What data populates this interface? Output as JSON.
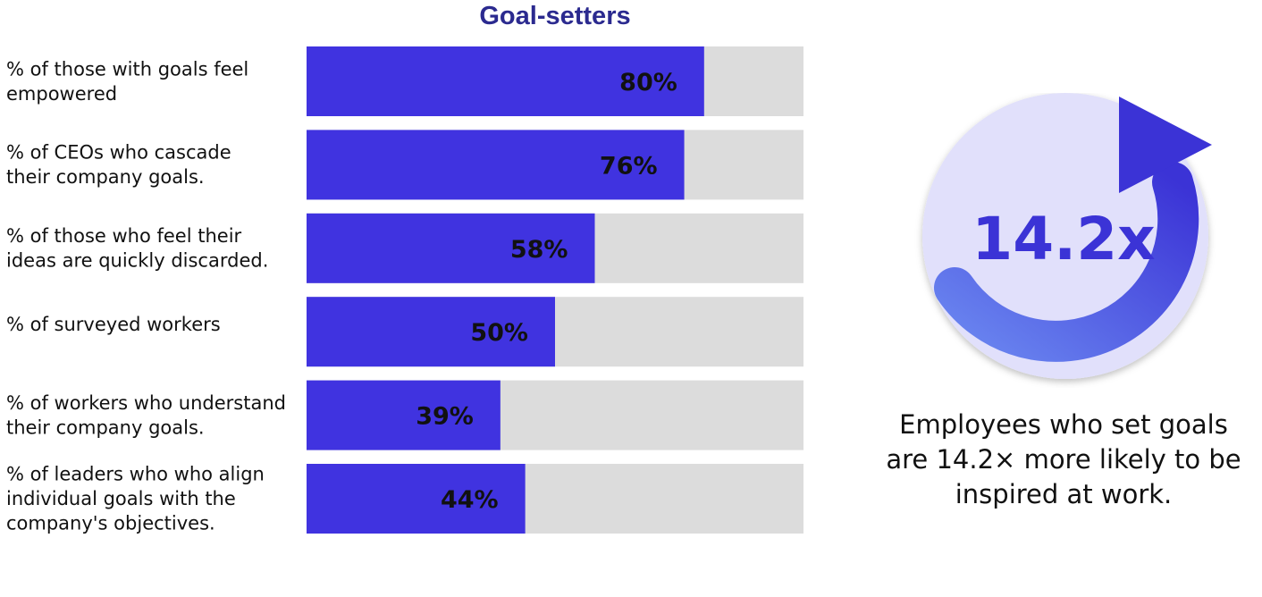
{
  "chart_data": {
    "type": "bar",
    "orientation": "horizontal",
    "title": "Goal-setters",
    "categories": [
      [
        "% of those with goals feel",
        "empowered"
      ],
      [
        "% of CEOs who cascade",
        "their company goals."
      ],
      [
        "% of those who feel their",
        "ideas are quickly discarded."
      ],
      [
        "% of surveyed workers"
      ],
      [
        "% of workers who understand",
        "their company goals."
      ],
      [
        "% of leaders who who align",
        "individual goals with the",
        "company's objectives."
      ]
    ],
    "values": [
      80,
      76,
      58,
      50,
      39,
      44
    ],
    "value_labels": [
      "80%",
      "76%",
      "58%",
      "50%",
      "39%",
      "44%"
    ],
    "xlim": [
      0,
      100
    ],
    "grid": false,
    "colors": {
      "bar": "#4033e0",
      "track": "#dcdcdc",
      "title": "#2b2a8f"
    }
  },
  "highlight": {
    "figure": "14.2x",
    "caption": [
      "Employees who set goals",
      "are 14.2× more likely to be",
      "inspired at work."
    ],
    "icon": "circular-arrow-icon",
    "colors": {
      "disc": "#e1e0fb",
      "arc_start": "#6a86f0",
      "arc_end": "#3b33d6",
      "text": "#3b33d6"
    }
  }
}
